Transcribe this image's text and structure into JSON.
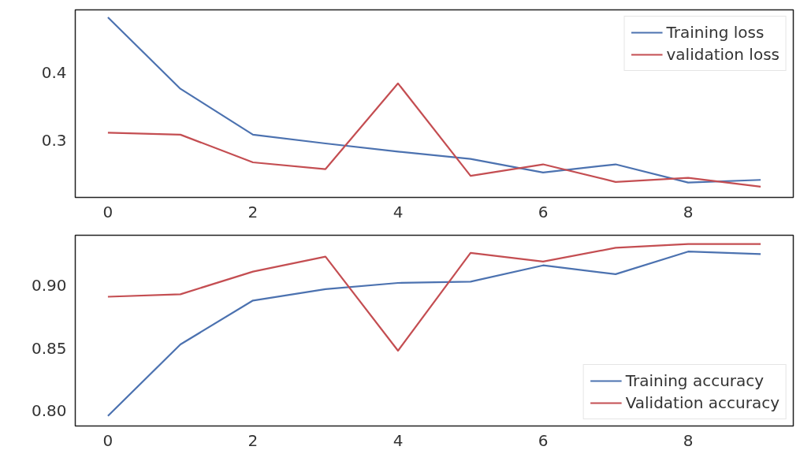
{
  "chart_data": [
    {
      "type": "line",
      "x": [
        0,
        1,
        2,
        3,
        4,
        5,
        6,
        7,
        8,
        9
      ],
      "xlim": [
        -0.45,
        9.45
      ],
      "xticks": [
        0,
        2,
        4,
        6,
        8
      ],
      "ylim": [
        0.215,
        0.493
      ],
      "yticks": [
        0.3,
        0.4
      ],
      "grid": false,
      "legend": "top right",
      "series": [
        {
          "name": "Training loss",
          "color": "#4c72b0",
          "values": [
            0.482,
            0.376,
            0.308,
            0.295,
            0.283,
            0.272,
            0.252,
            0.264,
            0.237,
            0.241
          ]
        },
        {
          "name": "validation loss",
          "color": "#c44e52",
          "values": [
            0.311,
            0.308,
            0.267,
            0.257,
            0.384,
            0.247,
            0.264,
            0.238,
            0.244,
            0.231
          ]
        }
      ]
    },
    {
      "type": "line",
      "x": [
        0,
        1,
        2,
        3,
        4,
        5,
        6,
        7,
        8,
        9
      ],
      "xlim": [
        -0.45,
        9.45
      ],
      "xticks": [
        0,
        2,
        4,
        6,
        8
      ],
      "ylim": [
        0.788,
        0.94
      ],
      "yticks": [
        {
          "value": 0.8,
          "label": "0.80"
        },
        {
          "value": 0.85,
          "label": "0.85"
        },
        {
          "value": 0.9,
          "label": "0.90"
        }
      ],
      "grid": false,
      "legend": "bottom right",
      "series": [
        {
          "name": "Training accuracy",
          "color": "#4c72b0",
          "values": [
            0.796,
            0.853,
            0.888,
            0.897,
            0.902,
            0.903,
            0.916,
            0.909,
            0.927,
            0.925
          ]
        },
        {
          "name": "Validation accuracy",
          "color": "#c44e52",
          "values": [
            0.891,
            0.893,
            0.911,
            0.923,
            0.848,
            0.926,
            0.919,
            0.93,
            0.933,
            0.933
          ]
        }
      ]
    }
  ]
}
